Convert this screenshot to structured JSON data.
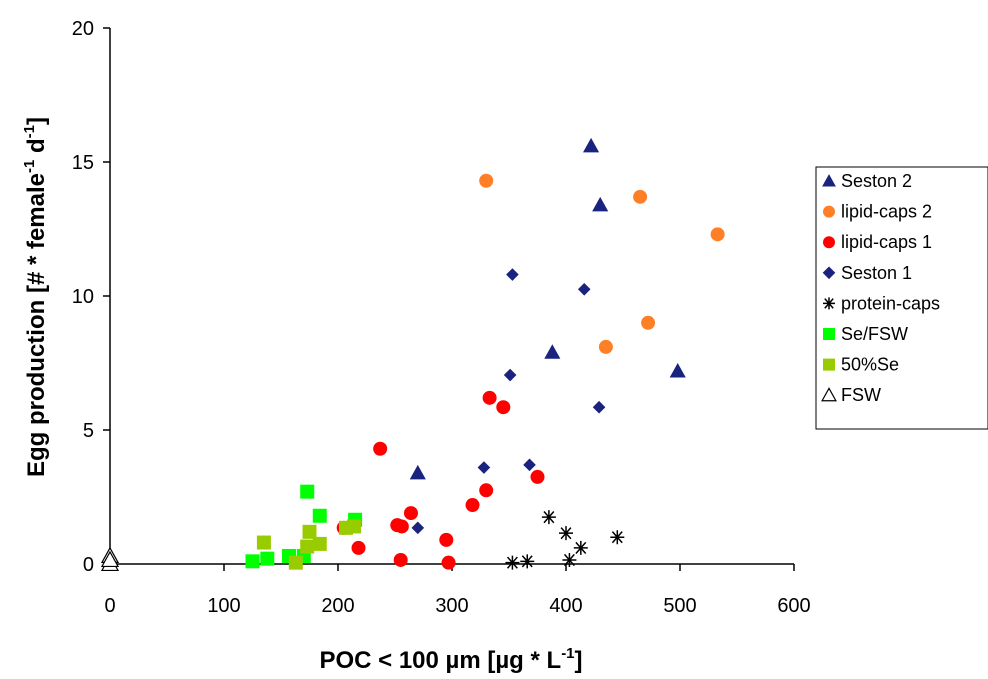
{
  "chart_data": {
    "type": "scatter",
    "title": "",
    "xlabel": {
      "main": "POC < 100 µm [µg * L",
      "sup": "-1",
      "end": "]"
    },
    "ylabel": {
      "part1": "Egg production [# * female",
      "sup1": "-1",
      "part2": " d",
      "sup2": "-1",
      "end": "]"
    },
    "xlim": [
      0,
      600
    ],
    "ylim": [
      0,
      20
    ],
    "xticks": [
      0,
      100,
      200,
      300,
      400,
      500,
      600
    ],
    "yticks": [
      0,
      5,
      10,
      15,
      20
    ],
    "xtick_labels": [
      "0",
      "100",
      "200",
      "300",
      "400",
      "500",
      "600"
    ],
    "ytick_labels": [
      "0",
      "5",
      "10",
      "15",
      "20"
    ],
    "grid": false,
    "legend_position": "right",
    "series": [
      {
        "name": "Seston 2",
        "marker": "triangle",
        "color": "#1a237e",
        "points": [
          [
            270,
            3.4
          ],
          [
            388,
            7.9
          ],
          [
            422,
            15.6
          ],
          [
            430,
            13.4
          ],
          [
            498,
            7.2
          ]
        ]
      },
      {
        "name": "lipid-caps 2",
        "marker": "circle",
        "color": "#ff7f27",
        "points": [
          [
            330,
            14.3
          ],
          [
            435,
            8.1
          ],
          [
            465,
            13.7
          ],
          [
            472,
            9.0
          ],
          [
            533,
            12.3
          ]
        ]
      },
      {
        "name": "lipid-caps 1",
        "marker": "circle",
        "color": "#ff0000",
        "points": [
          [
            205,
            1.35
          ],
          [
            218,
            0.6
          ],
          [
            237,
            4.3
          ],
          [
            252,
            1.45
          ],
          [
            255,
            0.15
          ],
          [
            256,
            1.4
          ],
          [
            264,
            1.9
          ],
          [
            295,
            0.9
          ],
          [
            297,
            0.05
          ],
          [
            318,
            2.2
          ],
          [
            330,
            2.75
          ],
          [
            333,
            6.2
          ],
          [
            345,
            5.85
          ],
          [
            375,
            3.25
          ]
        ]
      },
      {
        "name": "Seston 1",
        "marker": "diamond",
        "color": "#1a237e",
        "points": [
          [
            270,
            1.35
          ],
          [
            328,
            3.6
          ],
          [
            351,
            7.05
          ],
          [
            353,
            10.8
          ],
          [
            368,
            3.7
          ],
          [
            416,
            10.25
          ],
          [
            429,
            5.85
          ]
        ]
      },
      {
        "name": "protein-caps",
        "marker": "star",
        "color": "#000000",
        "points": [
          [
            353,
            0.05
          ],
          [
            366,
            0.1
          ],
          [
            385,
            1.75
          ],
          [
            400,
            1.15
          ],
          [
            403,
            0.15
          ],
          [
            413,
            0.6
          ],
          [
            445,
            1.0
          ]
        ]
      },
      {
        "name": "Se/FSW",
        "marker": "square",
        "color": "#00ff00",
        "points": [
          [
            125,
            0.1
          ],
          [
            138,
            0.2
          ],
          [
            157,
            0.3
          ],
          [
            170,
            0.3
          ],
          [
            173,
            2.7
          ],
          [
            184,
            1.8
          ],
          [
            215,
            1.65
          ]
        ]
      },
      {
        "name": "50%Se",
        "marker": "square",
        "color": "#99cc00",
        "points": [
          [
            135,
            0.8
          ],
          [
            163,
            0.05
          ],
          [
            173,
            0.65
          ],
          [
            175,
            1.2
          ],
          [
            184,
            0.75
          ],
          [
            207,
            1.35
          ],
          [
            214,
            1.4
          ]
        ]
      },
      {
        "name": "FSW",
        "marker": "triangle-open",
        "color": "#000000",
        "points": [
          [
            0,
            0.0
          ],
          [
            0,
            0.3
          ],
          [
            0,
            0.15
          ]
        ]
      }
    ]
  }
}
